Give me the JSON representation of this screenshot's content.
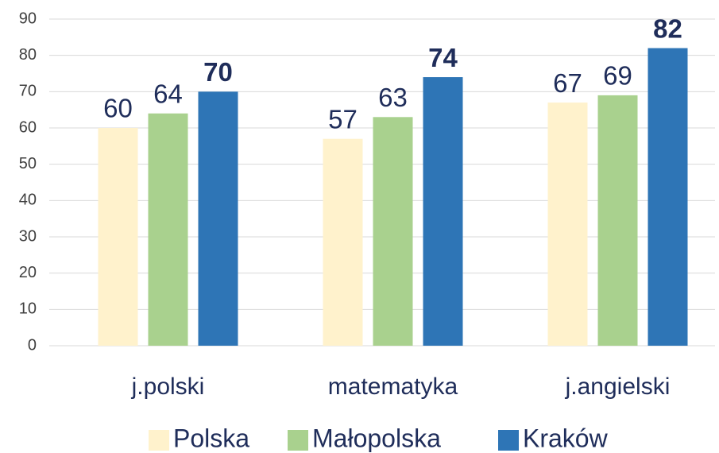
{
  "chart_data": {
    "type": "bar",
    "categories": [
      "j.polski",
      "matematyka",
      "j.angielski"
    ],
    "series": [
      {
        "name": "Polska",
        "color": "#fff2cc",
        "values": [
          60,
          57,
          67
        ]
      },
      {
        "name": "Małopolska",
        "color": "#a9d18e",
        "values": [
          64,
          63,
          69
        ]
      },
      {
        "name": "Kraków",
        "color": "#2e75b6",
        "values": [
          70,
          74,
          82
        ]
      }
    ],
    "ylim": [
      0,
      90
    ],
    "yticks": [
      0,
      10,
      20,
      30,
      40,
      50,
      60,
      70,
      80,
      90
    ],
    "grid": true,
    "legend": "bottom"
  }
}
